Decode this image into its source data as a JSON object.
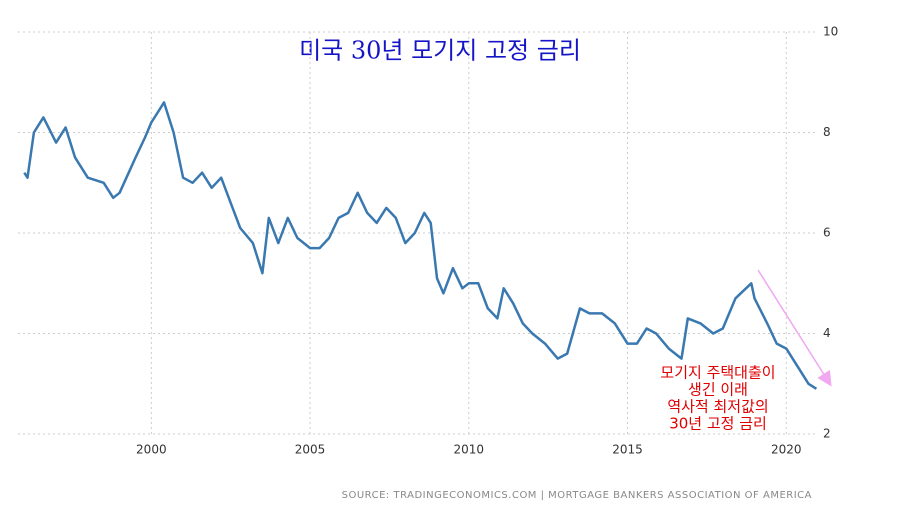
{
  "chart_data": {
    "type": "line",
    "title": "미국 30년 모기지 고정 금리",
    "annotation": [
      "모기지 주택대출이",
      "생긴 이래",
      "역사적 최저값의",
      "30년 고정 금리"
    ],
    "source": "SOURCE: TRADINGECONOMICS.COM  |  MORTGAGE BANKERS ASSOCIATION OF AMERICA",
    "x": [
      1996.0,
      1996.1,
      1996.3,
      1996.6,
      1997.0,
      1997.3,
      1997.6,
      1998.0,
      1998.5,
      1998.8,
      1999.0,
      1999.5,
      1999.8,
      2000.0,
      2000.3,
      2000.4,
      2000.7,
      2001.0,
      2001.3,
      2001.6,
      2001.9,
      2002.2,
      2002.5,
      2002.8,
      2003.2,
      2003.5,
      2003.7,
      2004.0,
      2004.3,
      2004.6,
      2005.0,
      2005.3,
      2005.6,
      2005.9,
      2006.2,
      2006.5,
      2006.8,
      2007.1,
      2007.4,
      2007.7,
      2008.0,
      2008.3,
      2008.6,
      2008.8,
      2009.0,
      2009.2,
      2009.5,
      2009.8,
      2010.0,
      2010.3,
      2010.6,
      2010.9,
      2011.1,
      2011.4,
      2011.7,
      2012.0,
      2012.4,
      2012.8,
      2013.1,
      2013.5,
      2013.8,
      2014.2,
      2014.6,
      2015.0,
      2015.3,
      2015.6,
      2015.9,
      2016.3,
      2016.7,
      2016.9,
      2017.3,
      2017.7,
      2018.0,
      2018.4,
      2018.9,
      2019.0,
      2019.4,
      2019.7,
      2020.0,
      2020.4,
      2020.7,
      2020.95
    ],
    "values": [
      7.2,
      7.1,
      8.0,
      8.3,
      7.8,
      8.1,
      7.5,
      7.1,
      7.0,
      6.7,
      6.8,
      7.5,
      7.9,
      8.2,
      8.5,
      8.6,
      8.0,
      7.1,
      7.0,
      7.2,
      6.9,
      7.1,
      6.6,
      6.1,
      5.8,
      5.2,
      6.3,
      5.8,
      6.3,
      5.9,
      5.7,
      5.7,
      5.9,
      6.3,
      6.4,
      6.8,
      6.4,
      6.2,
      6.5,
      6.3,
      5.8,
      6.0,
      6.4,
      6.2,
      5.1,
      4.8,
      5.3,
      4.9,
      5.0,
      5.0,
      4.5,
      4.3,
      4.9,
      4.6,
      4.2,
      4.0,
      3.8,
      3.5,
      3.6,
      4.5,
      4.4,
      4.4,
      4.2,
      3.8,
      3.8,
      4.1,
      4.0,
      3.7,
      3.5,
      4.3,
      4.2,
      4.0,
      4.1,
      4.7,
      5.0,
      4.7,
      4.2,
      3.8,
      3.7,
      3.3,
      3.0,
      2.9
    ],
    "color": "#3a78b0",
    "xlim": [
      1995.8,
      2021.0
    ],
    "xticks": [
      2000,
      2005,
      2010,
      2015,
      2020
    ],
    "ylim": [
      2,
      10
    ],
    "yticks": [
      2,
      4,
      6,
      8,
      10
    ],
    "grid": true
  }
}
